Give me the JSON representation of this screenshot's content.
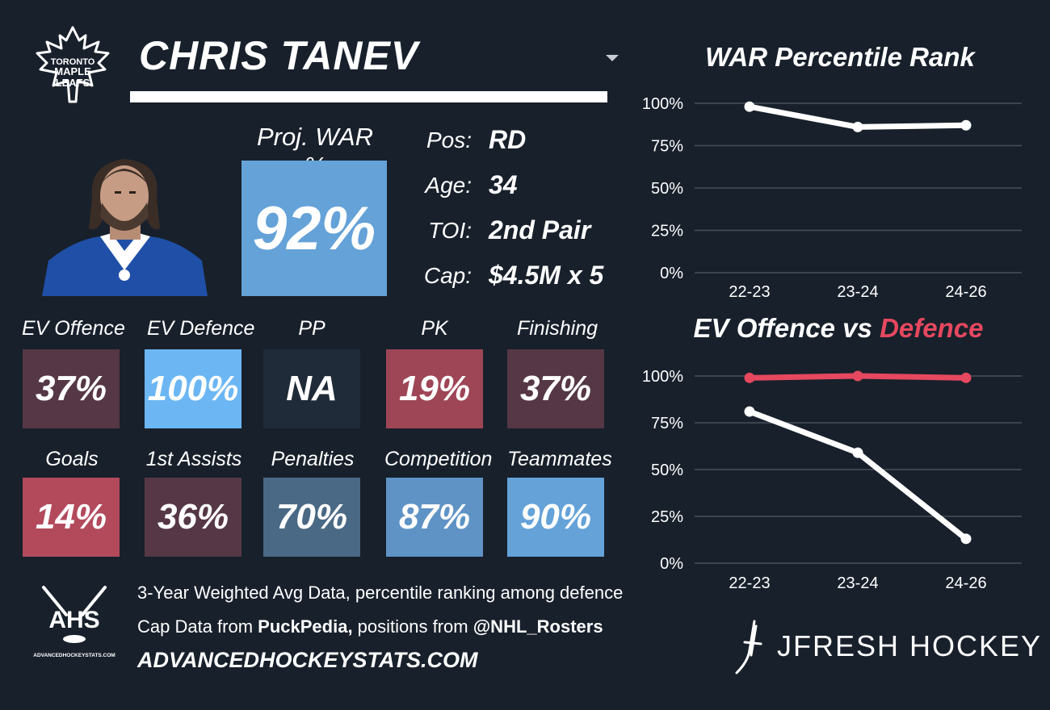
{
  "player": {
    "name": "CHRIS TANEV"
  },
  "team": {
    "logo_line1": "TORONTO",
    "logo_line2": "MAPLE",
    "logo_line3": "LEAFS"
  },
  "projection": {
    "label": "Proj. WAR %",
    "value": "92%"
  },
  "info": [
    {
      "label": "Pos:",
      "value": "RD"
    },
    {
      "label": "Age:",
      "value": "34"
    },
    {
      "label": "TOI:",
      "value": "2nd Pair"
    },
    {
      "label": "Cap:",
      "value": "$4.5M x 5"
    }
  ],
  "tiles": [
    {
      "label": "EV Offence",
      "value": "37%",
      "color": "#553746"
    },
    {
      "label": "EV Defence",
      "value": "100%",
      "color": "#6cb6f4"
    },
    {
      "label": "PP",
      "value": "NA",
      "color": "#1f2b38"
    },
    {
      "label": "PK",
      "value": "19%",
      "color": "#9e4556"
    },
    {
      "label": "Finishing",
      "value": "37%",
      "color": "#553746"
    },
    {
      "label": "Goals",
      "value": "14%",
      "color": "#b24a5c"
    },
    {
      "label": "1st Assists",
      "value": "36%",
      "color": "#553746"
    },
    {
      "label": "Penalties",
      "value": "70%",
      "color": "#4a6985"
    },
    {
      "label": "Competition",
      "value": "87%",
      "color": "#5f93c5"
    },
    {
      "label": "Teammates",
      "value": "90%",
      "color": "#64a2d8"
    }
  ],
  "footer": {
    "line1": "3-Year Weighted Avg Data, percentile ranking among defence",
    "line2_a": "Cap Data from ",
    "line2_b": "PuckPedia,",
    "line2_c": " positions from ",
    "line2_d": "@NHL_Rosters",
    "site": "ADVANCEDHOCKEYSTATS.COM",
    "ahs_logo": "AHS",
    "ahs_sub": "ADVANCEDHOCKEYSTATS.COM",
    "brand": "JFRESH HOCKEY"
  },
  "colors": {
    "background": "#18202b",
    "offence_line": "#ffffff",
    "defence_line": "#e5485f",
    "grid": "#47505c"
  },
  "chart_data": [
    {
      "type": "line",
      "title": "WAR Percentile Rank",
      "categories": [
        "22-23",
        "23-24",
        "24-26"
      ],
      "yticks": [
        "100%",
        "75%",
        "50%",
        "25%",
        "0%"
      ],
      "ylim": [
        0,
        100
      ],
      "series": [
        {
          "values": [
            98,
            86,
            87
          ],
          "color": "#ffffff"
        }
      ]
    },
    {
      "type": "line",
      "title_a": "EV Offence vs ",
      "title_b": "Defence",
      "categories": [
        "22-23",
        "23-24",
        "24-26"
      ],
      "yticks": [
        "100%",
        "75%",
        "50%",
        "25%",
        "0%"
      ],
      "ylim": [
        0,
        100
      ],
      "series": [
        {
          "values": [
            81,
            59,
            13
          ],
          "color": "#ffffff"
        },
        {
          "values": [
            99,
            100,
            99
          ],
          "color": "#e5485f"
        }
      ]
    }
  ]
}
